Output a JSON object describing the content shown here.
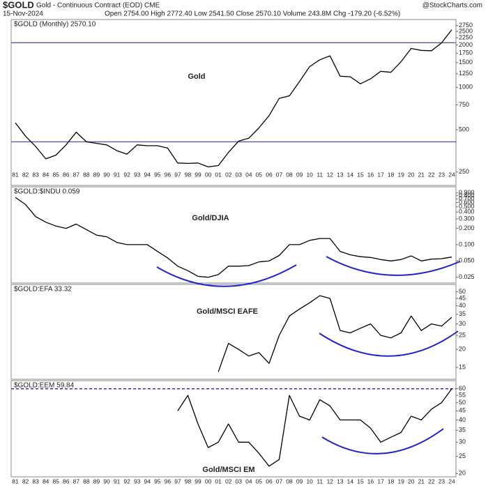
{
  "header": {
    "symbol": "$GOLD",
    "name": "Gold - Continuous Contract (EOD) CME",
    "date": "15-Nov-2024",
    "quote": "Open 2754.00  High 2772.40  Low 2541.50  Close 2570.10  Volume 243.8M  Chg -179.20 (-6.52%)",
    "credit": "@StockCharts.com"
  },
  "chart_data": [
    {
      "type": "line",
      "title": "Gold",
      "legend": "$GOLD (Monthly) 2570.10",
      "log_scale": true,
      "color": "#000000",
      "categories": [
        "81",
        "82",
        "83",
        "84",
        "85",
        "86",
        "87",
        "88",
        "89",
        "90",
        "91",
        "92",
        "93",
        "94",
        "95",
        "96",
        "97",
        "98",
        "99",
        "00",
        "01",
        "02",
        "03",
        "04",
        "05",
        "06",
        "07",
        "08",
        "09",
        "10",
        "11",
        "12",
        "13",
        "14",
        "15",
        "16",
        "17",
        "18",
        "19",
        "20",
        "21",
        "22",
        "23",
        "24"
      ],
      "values": [
        560,
        450,
        380,
        310,
        330,
        390,
        480,
        410,
        400,
        390,
        355,
        335,
        390,
        385,
        385,
        370,
        290,
        288,
        290,
        272,
        278,
        345,
        415,
        435,
        515,
        630,
        835,
        870,
        1100,
        1405,
        1570,
        1675,
        1200,
        1190,
        1060,
        1150,
        1300,
        1280,
        1520,
        1890,
        1830,
        1820,
        2070,
        2570
      ],
      "ylim": [
        220,
        2900
      ],
      "yticks": [
        250,
        500,
        750,
        1000,
        1250,
        1500,
        1750,
        2000,
        2250,
        2500,
        2750
      ],
      "reference_lines": [
        2075,
        410
      ],
      "reference_color": "#5a5aa0"
    },
    {
      "type": "line",
      "title": "Gold/DJIA",
      "legend": "$GOLD:$INDU 0.059",
      "log_scale": true,
      "color": "#000000",
      "categories": [
        "81",
        "82",
        "83",
        "84",
        "85",
        "86",
        "87",
        "88",
        "89",
        "90",
        "91",
        "92",
        "93",
        "94",
        "95",
        "96",
        "97",
        "98",
        "99",
        "00",
        "01",
        "02",
        "03",
        "04",
        "05",
        "06",
        "07",
        "08",
        "09",
        "10",
        "11",
        "12",
        "13",
        "14",
        "15",
        "16",
        "17",
        "18",
        "19",
        "20",
        "21",
        "22",
        "23",
        "24"
      ],
      "values": [
        0.75,
        0.55,
        0.33,
        0.26,
        0.22,
        0.2,
        0.24,
        0.19,
        0.15,
        0.14,
        0.11,
        0.1,
        0.1,
        0.1,
        0.075,
        0.057,
        0.04,
        0.033,
        0.026,
        0.025,
        0.028,
        0.04,
        0.04,
        0.041,
        0.048,
        0.05,
        0.063,
        0.1,
        0.1,
        0.12,
        0.13,
        0.13,
        0.075,
        0.065,
        0.06,
        0.058,
        0.053,
        0.05,
        0.053,
        0.062,
        0.05,
        0.054,
        0.055,
        0.059
      ],
      "ylim": [
        0.022,
        0.95
      ],
      "yticks": [
        {
          "value": 0.025,
          "label": "0.025"
        },
        {
          "value": 0.05,
          "label": "0.050"
        },
        {
          "value": 0.1,
          "label": "0.100"
        },
        {
          "value": 0.2,
          "label": "0.200"
        },
        {
          "value": 0.3,
          "label": "0.300"
        },
        {
          "value": 0.4,
          "label": "0.400"
        },
        {
          "value": 0.5,
          "label": "0.500"
        },
        {
          "value": 0.6,
          "label": "0.600"
        },
        {
          "value": 0.7,
          "label": "0.700"
        },
        {
          "value": 0.8,
          "label": "0.800"
        },
        {
          "value": 0.9,
          "label": "0.900"
        }
      ]
    },
    {
      "type": "line",
      "title": "Gold/MSCI EAFE",
      "legend": "$GOLD:EFA 33.32",
      "log_scale": true,
      "color": "#000000",
      "categories": [
        "81",
        "82",
        "83",
        "84",
        "85",
        "86",
        "87",
        "88",
        "89",
        "90",
        "91",
        "92",
        "93",
        "94",
        "95",
        "96",
        "97",
        "98",
        "99",
        "00",
        "01",
        "02",
        "03",
        "04",
        "05",
        "06",
        "07",
        "08",
        "09",
        "10",
        "11",
        "12",
        "13",
        "14",
        "15",
        "16",
        "17",
        "18",
        "19",
        "20",
        "21",
        "22",
        "23",
        "24"
      ],
      "values": [
        null,
        null,
        null,
        null,
        null,
        null,
        null,
        null,
        null,
        null,
        null,
        null,
        null,
        null,
        null,
        null,
        null,
        null,
        null,
        null,
        14,
        22,
        20,
        18,
        19,
        16,
        25,
        34,
        38,
        42,
        47,
        45,
        27,
        26,
        28,
        30,
        25,
        24,
        26,
        34,
        27,
        30,
        29,
        33.32
      ],
      "ylim": [
        13,
        52
      ],
      "yticks": [
        15,
        20,
        25,
        30,
        35,
        40,
        45,
        50
      ]
    },
    {
      "type": "line",
      "title": "Gold/MSCI EM",
      "legend": "$GOLD:EEM 59.84",
      "log_scale": true,
      "color": "#000000",
      "categories": [
        "81",
        "82",
        "83",
        "84",
        "85",
        "86",
        "87",
        "88",
        "89",
        "90",
        "91",
        "92",
        "93",
        "94",
        "95",
        "96",
        "97",
        "98",
        "99",
        "00",
        "01",
        "02",
        "03",
        "04",
        "05",
        "06",
        "07",
        "08",
        "09",
        "10",
        "11",
        "12",
        "13",
        "14",
        "15",
        "16",
        "17",
        "18",
        "19",
        "20",
        "21",
        "22",
        "23",
        "24"
      ],
      "values": [
        null,
        null,
        null,
        null,
        null,
        null,
        null,
        null,
        null,
        null,
        null,
        null,
        null,
        null,
        null,
        null,
        45,
        55,
        38,
        28,
        30,
        38,
        30,
        30,
        26,
        22,
        24,
        55,
        42,
        40,
        52,
        48,
        40,
        40,
        40,
        36,
        30,
        32,
        34,
        42,
        40,
        46,
        50,
        59.84
      ],
      "ylim": [
        19,
        63
      ],
      "yticks": [
        20,
        25,
        30,
        35,
        40,
        45,
        50,
        55,
        60
      ],
      "reference_lines": [
        59.84
      ],
      "reference_color": "#2222cc",
      "reference_dashed": true
    }
  ]
}
